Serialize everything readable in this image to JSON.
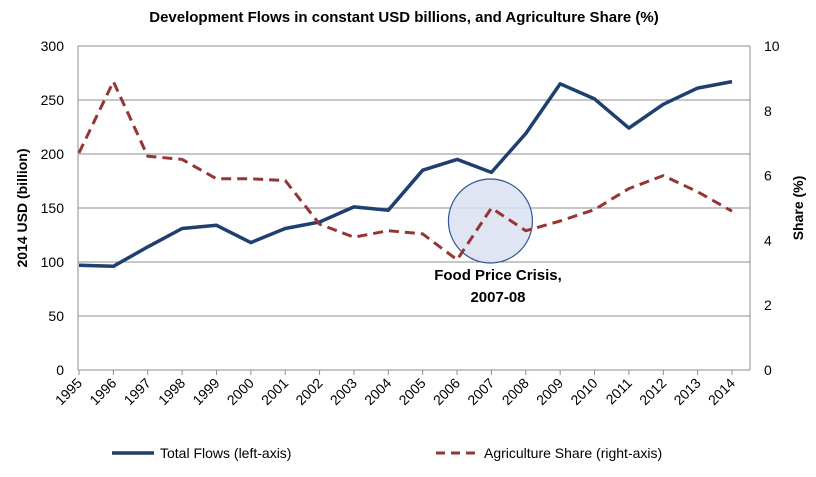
{
  "chart_data": {
    "type": "line",
    "title": "Development Flows in constant USD billions, and Agriculture Share (%)",
    "xlabel": "",
    "ylabel_left": "2014 USD (billion)",
    "ylabel_right": "Share (%)",
    "ylim_left": [
      0,
      300
    ],
    "yticks_left": [
      0,
      50,
      100,
      150,
      200,
      250,
      300
    ],
    "ylim_right": [
      0,
      10
    ],
    "yticks_right": [
      0,
      2,
      4,
      6,
      8,
      10
    ],
    "grid": true,
    "legend_position": "bottom",
    "categories": [
      "1995",
      "1996",
      "1997",
      "1998",
      "1999",
      "2000",
      "2001",
      "2002",
      "2003",
      "2004",
      "2005",
      "2006",
      "2007",
      "2008",
      "2009",
      "2010",
      "2011",
      "2012",
      "2013",
      "2014"
    ],
    "series": [
      {
        "name": "Total Flows (left-axis)",
        "axis": "left",
        "style": "solid",
        "color": "#1f3f6e",
        "values": [
          97,
          96,
          114,
          131,
          134,
          118,
          131,
          137,
          151,
          148,
          185,
          195,
          183,
          219,
          265,
          251,
          224,
          246,
          261,
          267
        ]
      },
      {
        "name": "Agriculture Share (right-axis)",
        "axis": "right",
        "style": "dashed",
        "color": "#943634",
        "values": [
          6.7,
          8.9,
          6.6,
          6.5,
          5.9,
          5.9,
          5.85,
          4.5,
          4.1,
          4.3,
          4.2,
          3.4,
          5.0,
          4.3,
          4.6,
          4.95,
          5.6,
          6.0,
          5.5,
          4.9
        ]
      }
    ],
    "annotation": {
      "lines": [
        "Food Price Crisis,",
        "2007-08"
      ],
      "highlight_year": "2007"
    }
  }
}
